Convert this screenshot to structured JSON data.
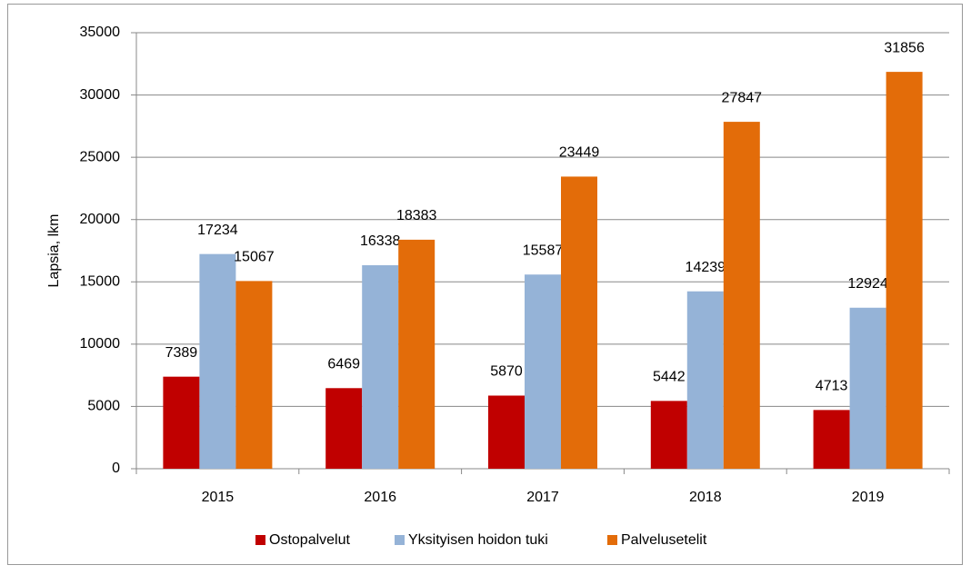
{
  "chart_data": {
    "type": "bar",
    "y_label": "Lapsia, lkm",
    "categories": [
      "2015",
      "2016",
      "2017",
      "2018",
      "2019"
    ],
    "series": [
      {
        "name": "Ostopalvelut",
        "color": "#c00000",
        "values": [
          7389,
          6469,
          5870,
          5442,
          4713
        ]
      },
      {
        "name": "Yksityisen hoidon tuki",
        "color": "#95b3d7",
        "values": [
          17234,
          16338,
          15587,
          14239,
          12924
        ]
      },
      {
        "name": "Palvelusetelit",
        "color": "#e36c09",
        "values": [
          15067,
          18383,
          23449,
          27847,
          31856
        ]
      }
    ],
    "ylim": [
      0,
      35000
    ],
    "yticks": [
      0,
      5000,
      10000,
      15000,
      20000,
      25000,
      30000,
      35000
    ],
    "grid": true,
    "legend": "bottom"
  }
}
